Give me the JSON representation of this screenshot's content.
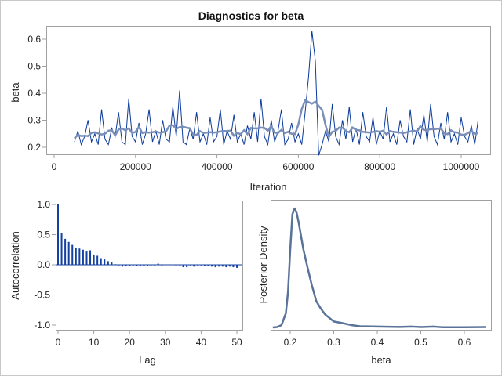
{
  "title": "Diagnostics for beta",
  "colors": {
    "trace": "#0b3a9c",
    "smooth": "#7a8fb8",
    "acf": "#1440a0",
    "density": "#5a7399",
    "frame": "#a0a0a0"
  },
  "chart_data": [
    {
      "type": "line",
      "name": "trace",
      "xlabel": "Iteration",
      "ylabel": "beta",
      "xlim": [
        0,
        1050000
      ],
      "ylim": [
        0.18,
        0.65
      ],
      "xticks": [
        "0",
        "200000",
        "400000",
        "600000",
        "800000",
        "1000000"
      ],
      "yticks": [
        "0.2",
        "0.3",
        "0.4",
        "0.5",
        "0.6"
      ],
      "x_start": 50000,
      "x_step": 8333,
      "values": [
        0.22,
        0.26,
        0.21,
        0.24,
        0.3,
        0.22,
        0.25,
        0.21,
        0.34,
        0.23,
        0.21,
        0.27,
        0.24,
        0.33,
        0.22,
        0.21,
        0.38,
        0.24,
        0.22,
        0.29,
        0.21,
        0.25,
        0.34,
        0.22,
        0.26,
        0.21,
        0.3,
        0.23,
        0.22,
        0.35,
        0.24,
        0.41,
        0.22,
        0.21,
        0.27,
        0.23,
        0.33,
        0.22,
        0.25,
        0.21,
        0.31,
        0.22,
        0.24,
        0.34,
        0.21,
        0.26,
        0.23,
        0.32,
        0.22,
        0.25,
        0.21,
        0.28,
        0.23,
        0.33,
        0.22,
        0.38,
        0.24,
        0.21,
        0.3,
        0.22,
        0.26,
        0.34,
        0.21,
        0.23,
        0.29,
        0.22,
        0.25,
        0.21,
        0.33,
        0.46,
        0.63,
        0.52,
        0.17,
        0.21,
        0.26,
        0.22,
        0.36,
        0.24,
        0.21,
        0.3,
        0.23,
        0.35,
        0.22,
        0.27,
        0.21,
        0.33,
        0.24,
        0.22,
        0.31,
        0.21,
        0.26,
        0.23,
        0.35,
        0.22,
        0.25,
        0.21,
        0.3,
        0.24,
        0.22,
        0.34,
        0.21,
        0.27,
        0.23,
        0.32,
        0.22,
        0.36,
        0.24,
        0.21,
        0.29,
        0.23,
        0.33,
        0.22,
        0.25,
        0.21,
        0.31,
        0.24,
        0.22,
        0.28,
        0.21,
        0.3
      ]
    },
    {
      "type": "bar",
      "name": "autocorrelation",
      "xlabel": "Lag",
      "ylabel": "Autocorrelation",
      "xlim": [
        0,
        50
      ],
      "ylim": [
        -1,
        1
      ],
      "xticks": [
        "0",
        "10",
        "20",
        "30",
        "40",
        "50"
      ],
      "yticks": [
        "1.0",
        "0.5",
        "0.0",
        "-0.5",
        "-1.0"
      ],
      "values": [
        1.0,
        0.53,
        0.43,
        0.38,
        0.33,
        0.28,
        0.27,
        0.25,
        0.22,
        0.24,
        0.17,
        0.15,
        0.11,
        0.09,
        0.06,
        0.04,
        0.01,
        -0.01,
        -0.03,
        -0.02,
        -0.02,
        -0.01,
        -0.02,
        -0.02,
        -0.02,
        -0.02,
        -0.01,
        -0.01,
        0.02,
        -0.01,
        0.0,
        0.0,
        0.0,
        -0.01,
        -0.01,
        -0.04,
        -0.04,
        -0.01,
        -0.03,
        -0.01,
        -0.01,
        -0.02,
        -0.02,
        -0.03,
        -0.04,
        -0.03,
        -0.03,
        -0.04,
        -0.03,
        -0.04,
        -0.05
      ]
    },
    {
      "type": "line",
      "name": "density",
      "xlabel": "beta",
      "ylabel": "Posterior Density",
      "xlim": [
        0.15,
        0.66
      ],
      "xticks": [
        "0.2",
        "0.3",
        "0.4",
        "0.5",
        "0.6"
      ],
      "x": [
        0.16,
        0.17,
        0.18,
        0.19,
        0.195,
        0.2,
        0.205,
        0.21,
        0.215,
        0.22,
        0.23,
        0.24,
        0.25,
        0.26,
        0.27,
        0.28,
        0.29,
        0.3,
        0.32,
        0.34,
        0.36,
        0.4,
        0.45,
        0.48,
        0.5,
        0.53,
        0.55,
        0.6,
        0.65
      ],
      "y": [
        0.0,
        0.003,
        0.02,
        0.12,
        0.3,
        0.65,
        0.95,
        1.0,
        0.96,
        0.87,
        0.66,
        0.5,
        0.35,
        0.22,
        0.16,
        0.11,
        0.08,
        0.05,
        0.036,
        0.02,
        0.01,
        0.007,
        0.004,
        0.007,
        0.003,
        0.007,
        0.002,
        0.002,
        0.003
      ]
    }
  ]
}
